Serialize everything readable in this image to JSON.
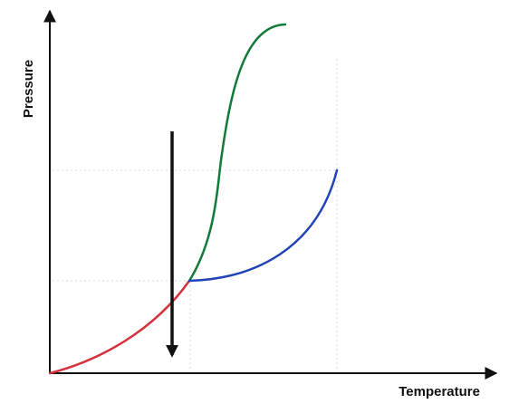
{
  "axes": {
    "x_label": "Temperature",
    "y_label": "Pressure"
  },
  "curves": {
    "red": {
      "color": "#d3313c"
    },
    "green": {
      "color": "#137a3a"
    },
    "blue": {
      "color": "#2242b8"
    }
  },
  "arrow": {
    "color": "#111111",
    "direction": "down"
  },
  "grid": {
    "style": "dotted",
    "color": "#d9d9d9"
  },
  "axis_color": "#111111"
}
